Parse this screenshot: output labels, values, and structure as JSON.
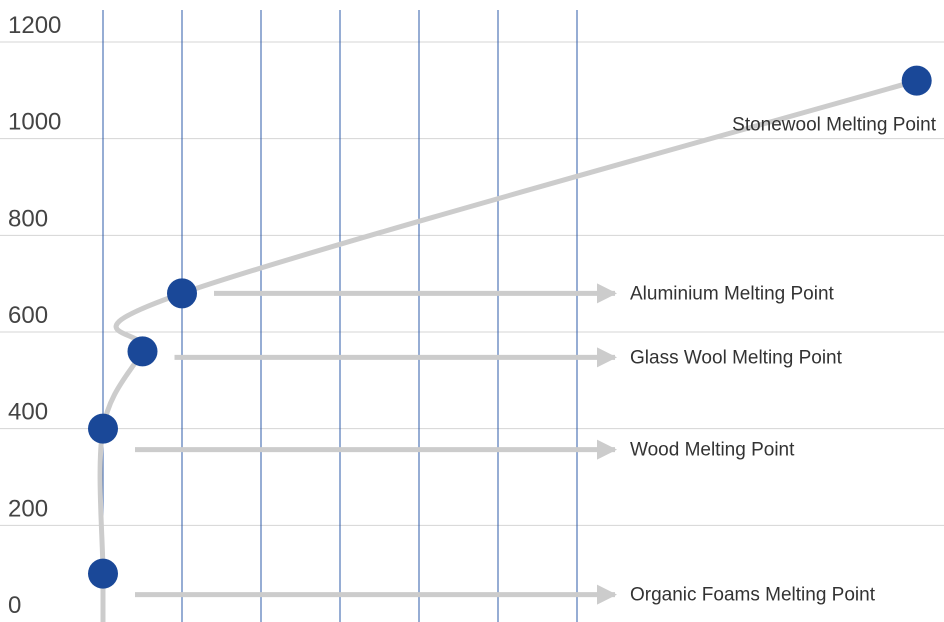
{
  "chart_data": {
    "type": "scatter",
    "title": "",
    "xlabel": "",
    "ylabel": "",
    "ylim": [
      0,
      1200
    ],
    "y_ticks": [
      {
        "value": 0,
        "label": "0"
      },
      {
        "value": 200,
        "label": "200"
      },
      {
        "value": 400,
        "label": "400"
      },
      {
        "value": 600,
        "label": "600"
      },
      {
        "value": 800,
        "label": "800"
      },
      {
        "value": 1000,
        "label": "1000"
      },
      {
        "value": 1200,
        "label": "1200"
      }
    ],
    "x_gridlines": 7,
    "grid": {
      "horizontal": true,
      "vertical": true
    },
    "series": [
      {
        "points": [
          {
            "x": 0.0,
            "y": 100,
            "label": "Organic Foams Melting Point",
            "arrow": true
          },
          {
            "x": 0.0,
            "y": 400,
            "label": "Wood Melting Point",
            "arrow": true
          },
          {
            "x": 0.5,
            "y": 560,
            "label": "Glass Wool Melting Point",
            "arrow": true
          },
          {
            "x": 1.0,
            "y": 680,
            "label": "Aluminium Melting Point",
            "arrow": true
          },
          {
            "x": 10.3,
            "y": 1120,
            "label": "Stonewool Melting Point",
            "arrow": false
          }
        ]
      }
    ],
    "colors": {
      "point": "#1a4898",
      "curve": "#cccccc",
      "arrow": "#cccccc",
      "vertical_grid": "#2e5ba8",
      "horizontal_grid": "#d4d4d4",
      "text": "#333333"
    }
  }
}
